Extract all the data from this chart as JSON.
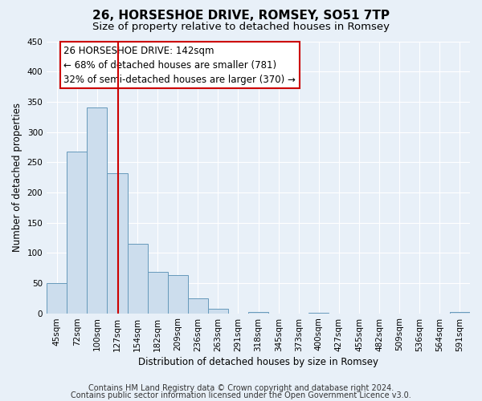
{
  "title": "26, HORSESHOE DRIVE, ROMSEY, SO51 7TP",
  "subtitle": "Size of property relative to detached houses in Romsey",
  "xlabel": "Distribution of detached houses by size in Romsey",
  "ylabel": "Number of detached properties",
  "footer_line1": "Contains HM Land Registry data © Crown copyright and database right 2024.",
  "footer_line2": "Contains public sector information licensed under the Open Government Licence v3.0.",
  "bin_labels": [
    "45sqm",
    "72sqm",
    "100sqm",
    "127sqm",
    "154sqm",
    "182sqm",
    "209sqm",
    "236sqm",
    "263sqm",
    "291sqm",
    "318sqm",
    "345sqm",
    "373sqm",
    "400sqm",
    "427sqm",
    "455sqm",
    "482sqm",
    "509sqm",
    "536sqm",
    "564sqm",
    "591sqm"
  ],
  "bar_values": [
    50,
    267,
    340,
    232,
    115,
    68,
    63,
    25,
    7,
    0,
    2,
    0,
    0,
    1,
    0,
    0,
    0,
    0,
    0,
    0,
    2
  ],
  "bar_color": "#ccdded",
  "bar_edge_color": "#6699bb",
  "ylim": [
    0,
    450
  ],
  "yticks": [
    0,
    50,
    100,
    150,
    200,
    250,
    300,
    350,
    400,
    450
  ],
  "red_line_x": 3.56,
  "annot_line1": "26 HORSESHOE DRIVE: 142sqm",
  "annot_line2": "← 68% of detached houses are smaller (781)",
  "annot_line3": "32% of semi-detached houses are larger (370) →",
  "background_color": "#e8f0f8",
  "plot_bg_color": "#e8f0f8",
  "grid_color": "#ffffff",
  "title_fontsize": 11,
  "subtitle_fontsize": 9.5,
  "tick_fontsize": 7.5,
  "ylabel_fontsize": 8.5,
  "xlabel_fontsize": 8.5,
  "annot_fontsize": 8.5,
  "footer_fontsize": 7
}
